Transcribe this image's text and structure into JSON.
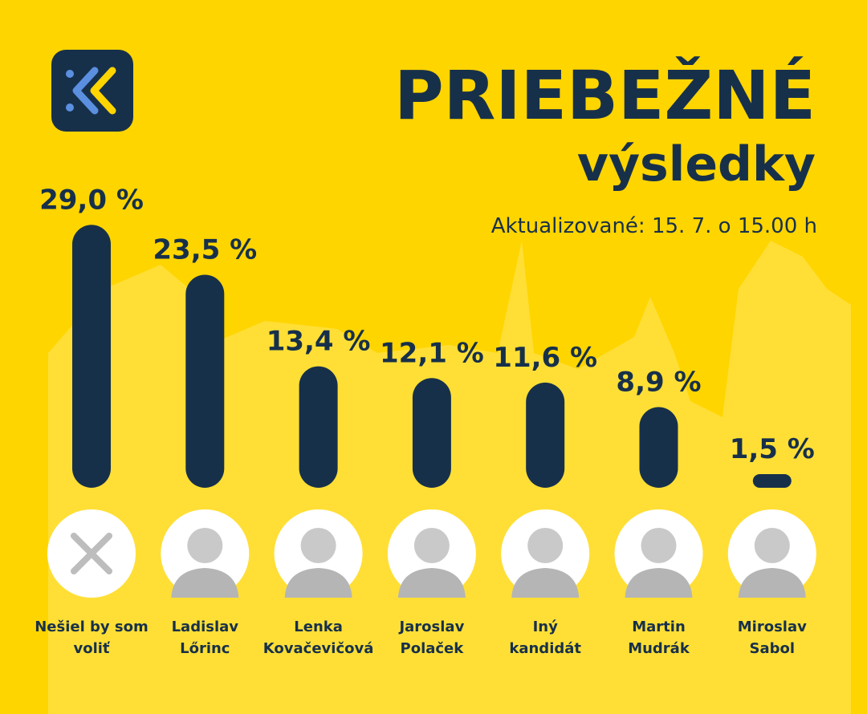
{
  "chart_data": {
    "type": "bar",
    "title": "PRIEBEŽNÉ",
    "subtitle": "výsledky",
    "annotation": "Aktualizované: 15. 7. o 15.00 h",
    "categories": [
      "Nešiel by som\nvoliť",
      "Ladislav\nLőrinc",
      "Lenka\nKovačevičová",
      "Jaroslav\nPolaček",
      "Iný\nkandidát",
      "Martin\nMudrák",
      "Miroslav\nSabol"
    ],
    "values": [
      29.0,
      23.5,
      13.4,
      12.1,
      11.6,
      8.9,
      1.5
    ],
    "value_labels": [
      "29,0 %",
      "23,5 %",
      "13,4 %",
      "12,1 %",
      "11,6 %",
      "8,9 %",
      "1,5 %"
    ],
    "color": "#17304a"
  }
}
